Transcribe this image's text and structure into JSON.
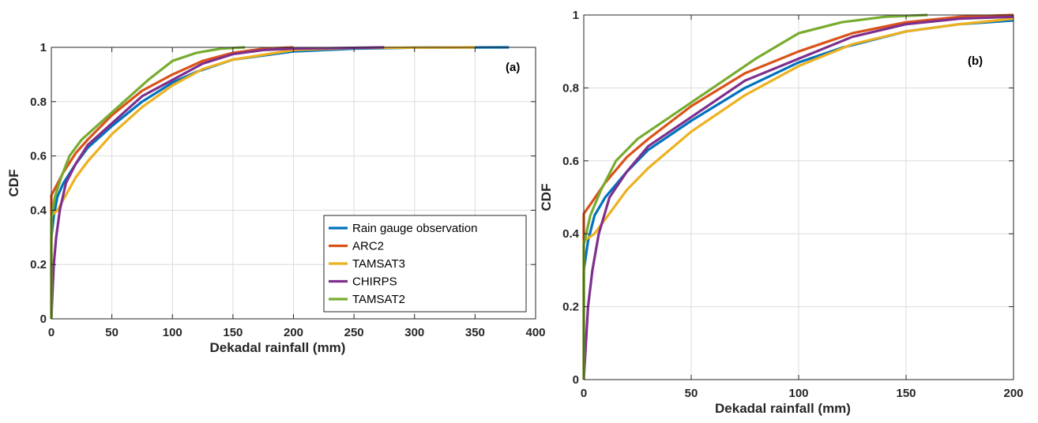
{
  "chart_data": [
    {
      "type": "line",
      "panel_label": "(a)",
      "xlabel": "Dekadal rainfall (mm)",
      "ylabel": "CDF",
      "xlim": [
        0,
        400
      ],
      "ylim": [
        0,
        1
      ],
      "xticks": [
        0,
        50,
        100,
        150,
        200,
        250,
        300,
        350,
        400
      ],
      "yticks": [
        0,
        0.2,
        0.4,
        0.6,
        0.8,
        1
      ],
      "xtick_labels": [
        "0",
        "50",
        "100",
        "150",
        "200",
        "250",
        "300",
        "350",
        "400"
      ],
      "ytick_labels": [
        "0",
        "0.2",
        "0.4",
        "0.6",
        "0.8",
        "1"
      ],
      "grid": true,
      "legend_position": "lower-right",
      "series": [
        {
          "name": "Rain gauge observation",
          "color": "#0072BD",
          "points": [
            [
              0,
              0
            ],
            [
              0,
              0.3
            ],
            [
              2,
              0.38
            ],
            [
              5,
              0.45
            ],
            [
              10,
              0.5
            ],
            [
              20,
              0.57
            ],
            [
              30,
              0.63
            ],
            [
              50,
              0.71
            ],
            [
              75,
              0.8
            ],
            [
              100,
              0.87
            ],
            [
              120,
              0.91
            ],
            [
              150,
              0.955
            ],
            [
              200,
              0.985
            ],
            [
              250,
              0.995
            ],
            [
              300,
              0.999
            ],
            [
              378,
              1
            ]
          ]
        },
        {
          "name": "ARC2",
          "color": "#D95319",
          "points": [
            [
              0,
              0
            ],
            [
              0,
              0.455
            ],
            [
              3,
              0.48
            ],
            [
              10,
              0.54
            ],
            [
              20,
              0.61
            ],
            [
              30,
              0.66
            ],
            [
              50,
              0.75
            ],
            [
              75,
              0.84
            ],
            [
              100,
              0.9
            ],
            [
              125,
              0.95
            ],
            [
              150,
              0.98
            ],
            [
              175,
              0.995
            ],
            [
              200,
              1
            ]
          ]
        },
        {
          "name": "TAMSAT3",
          "color": "#EDB120",
          "points": [
            [
              0,
              0
            ],
            [
              0,
              0.38
            ],
            [
              5,
              0.4
            ],
            [
              10,
              0.44
            ],
            [
              20,
              0.52
            ],
            [
              30,
              0.58
            ],
            [
              50,
              0.68
            ],
            [
              75,
              0.78
            ],
            [
              100,
              0.86
            ],
            [
              125,
              0.92
            ],
            [
              150,
              0.955
            ],
            [
              200,
              0.99
            ],
            [
              250,
              0.998
            ],
            [
              350,
              1
            ]
          ]
        },
        {
          "name": "CHIRPS",
          "color": "#7E2F8E",
          "points": [
            [
              0,
              0
            ],
            [
              1,
              0.1
            ],
            [
              2,
              0.2
            ],
            [
              4,
              0.3
            ],
            [
              7,
              0.4
            ],
            [
              12,
              0.5
            ],
            [
              20,
              0.57
            ],
            [
              30,
              0.64
            ],
            [
              50,
              0.72
            ],
            [
              75,
              0.82
            ],
            [
              100,
              0.88
            ],
            [
              125,
              0.94
            ],
            [
              150,
              0.975
            ],
            [
              175,
              0.99
            ],
            [
              200,
              0.995
            ],
            [
              275,
              1
            ]
          ]
        },
        {
          "name": "TAMSAT2",
          "color": "#77AC30",
          "points": [
            [
              0,
              0
            ],
            [
              0,
              0.37
            ],
            [
              3,
              0.45
            ],
            [
              8,
              0.52
            ],
            [
              15,
              0.6
            ],
            [
              25,
              0.66
            ],
            [
              40,
              0.72
            ],
            [
              60,
              0.8
            ],
            [
              80,
              0.88
            ],
            [
              100,
              0.95
            ],
            [
              120,
              0.98
            ],
            [
              140,
              0.995
            ],
            [
              160,
              1
            ]
          ]
        }
      ]
    },
    {
      "type": "line",
      "panel_label": "(b)",
      "xlabel": "Dekadal rainfall (mm)",
      "ylabel": "CDF",
      "xlim": [
        0,
        200
      ],
      "ylim": [
        0,
        1
      ],
      "xticks": [
        0,
        50,
        100,
        150,
        200
      ],
      "yticks": [
        0,
        0.2,
        0.4,
        0.6,
        0.8,
        1
      ],
      "xtick_labels": [
        "0",
        "50",
        "100",
        "150",
        "200"
      ],
      "ytick_labels": [
        "0",
        "0.2",
        "0.4",
        "0.6",
        "0.8",
        "1"
      ],
      "grid": true,
      "series": [
        {
          "name": "Rain gauge observation",
          "color": "#0072BD",
          "points": [
            [
              0,
              0
            ],
            [
              0,
              0.3
            ],
            [
              2,
              0.38
            ],
            [
              5,
              0.45
            ],
            [
              10,
              0.5
            ],
            [
              20,
              0.57
            ],
            [
              30,
              0.63
            ],
            [
              50,
              0.71
            ],
            [
              75,
              0.8
            ],
            [
              100,
              0.87
            ],
            [
              120,
              0.91
            ],
            [
              150,
              0.955
            ],
            [
              175,
              0.975
            ],
            [
              200,
              0.985
            ]
          ]
        },
        {
          "name": "ARC2",
          "color": "#D95319",
          "points": [
            [
              0,
              0
            ],
            [
              0,
              0.455
            ],
            [
              3,
              0.48
            ],
            [
              10,
              0.54
            ],
            [
              20,
              0.61
            ],
            [
              30,
              0.66
            ],
            [
              50,
              0.75
            ],
            [
              75,
              0.84
            ],
            [
              100,
              0.9
            ],
            [
              125,
              0.95
            ],
            [
              150,
              0.98
            ],
            [
              175,
              0.995
            ],
            [
              200,
              1
            ]
          ]
        },
        {
          "name": "TAMSAT3",
          "color": "#EDB120",
          "points": [
            [
              0,
              0
            ],
            [
              0,
              0.38
            ],
            [
              5,
              0.4
            ],
            [
              10,
              0.44
            ],
            [
              20,
              0.52
            ],
            [
              30,
              0.58
            ],
            [
              50,
              0.68
            ],
            [
              75,
              0.78
            ],
            [
              100,
              0.86
            ],
            [
              125,
              0.92
            ],
            [
              150,
              0.955
            ],
            [
              175,
              0.975
            ],
            [
              200,
              0.99
            ]
          ]
        },
        {
          "name": "CHIRPS",
          "color": "#7E2F8E",
          "points": [
            [
              0,
              0
            ],
            [
              1,
              0.1
            ],
            [
              2,
              0.2
            ],
            [
              4,
              0.3
            ],
            [
              7,
              0.4
            ],
            [
              12,
              0.5
            ],
            [
              20,
              0.57
            ],
            [
              30,
              0.64
            ],
            [
              50,
              0.72
            ],
            [
              75,
              0.82
            ],
            [
              100,
              0.88
            ],
            [
              125,
              0.94
            ],
            [
              150,
              0.975
            ],
            [
              175,
              0.99
            ],
            [
              200,
              0.995
            ]
          ]
        },
        {
          "name": "TAMSAT2",
          "color": "#77AC30",
          "points": [
            [
              0,
              0
            ],
            [
              0,
              0.37
            ],
            [
              3,
              0.45
            ],
            [
              8,
              0.52
            ],
            [
              15,
              0.6
            ],
            [
              25,
              0.66
            ],
            [
              40,
              0.72
            ],
            [
              60,
              0.8
            ],
            [
              80,
              0.88
            ],
            [
              100,
              0.95
            ],
            [
              120,
              0.98
            ],
            [
              140,
              0.995
            ],
            [
              160,
              1
            ]
          ]
        }
      ]
    }
  ]
}
